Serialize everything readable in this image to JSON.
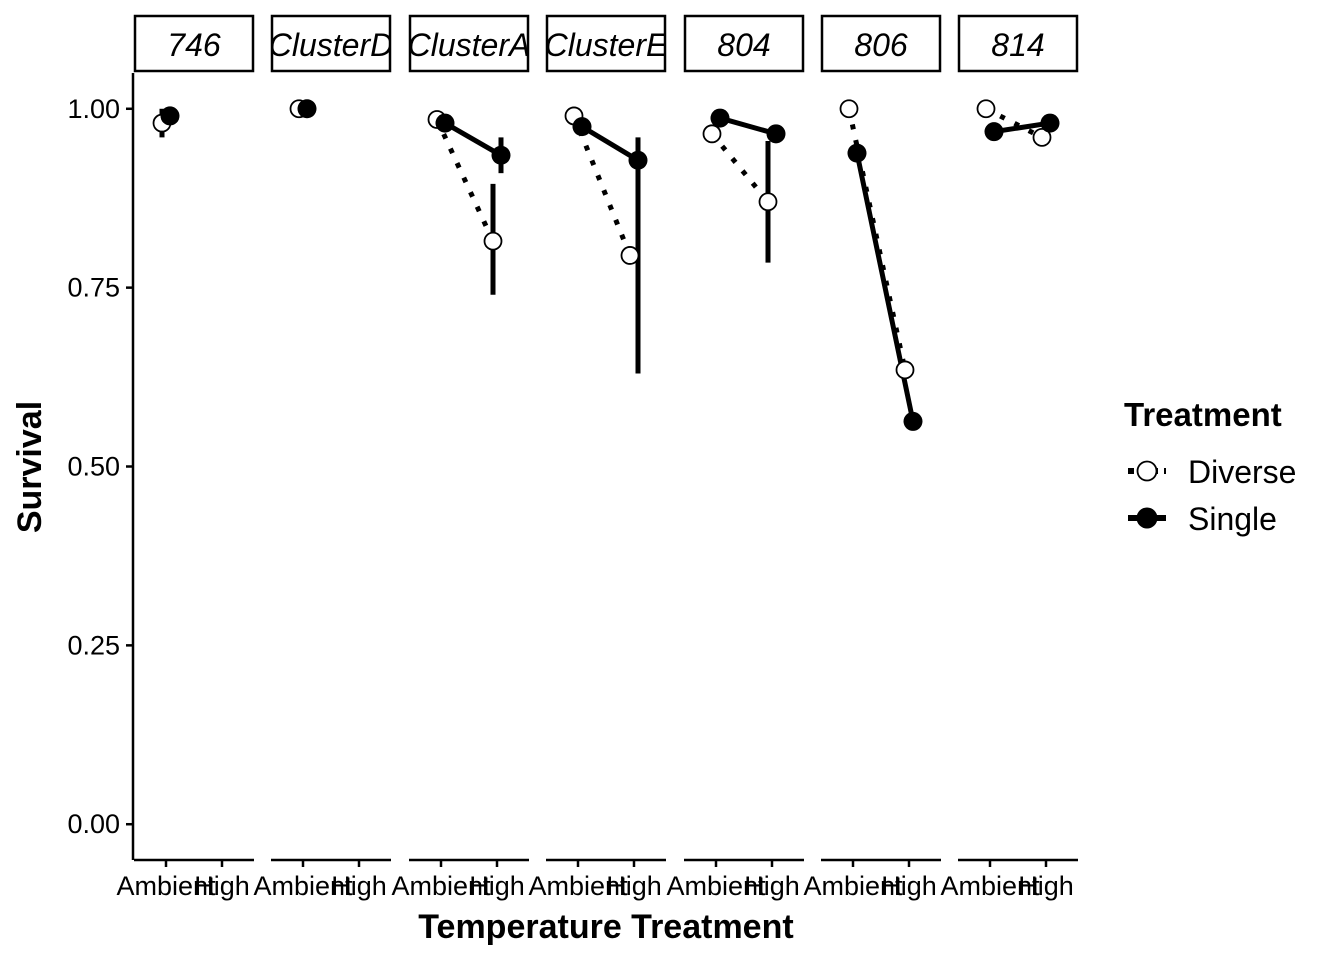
{
  "chart_data": {
    "type": "line",
    "xlabel": "Temperature Treatment",
    "ylabel": "Survival",
    "ylim": [
      -0.05,
      1.05
    ],
    "y_ticks": [
      "0.00",
      "0.25",
      "0.50",
      "0.75",
      "1.00"
    ],
    "categories": [
      "Ambient",
      "High"
    ],
    "legend": {
      "title": "Treatment",
      "position": "right",
      "entries": [
        {
          "name": "Diverse",
          "marker": "open-circle",
          "line": "dotted"
        },
        {
          "name": "Single",
          "marker": "filled-circle",
          "line": "solid"
        }
      ]
    },
    "panels": [
      {
        "label": "746",
        "series": [
          {
            "name": "Diverse",
            "points": [
              {
                "x": "Ambient",
                "y": 0.98,
                "lo": 0.96,
                "hi": 1.0
              }
            ]
          },
          {
            "name": "Single",
            "points": [
              {
                "x": "Ambient",
                "y": 0.99
              }
            ]
          }
        ]
      },
      {
        "label": "ClusterD",
        "series": [
          {
            "name": "Diverse",
            "points": [
              {
                "x": "Ambient",
                "y": 1.0
              }
            ]
          },
          {
            "name": "Single",
            "points": [
              {
                "x": "Ambient",
                "y": 1.0
              }
            ]
          }
        ]
      },
      {
        "label": "ClusterA",
        "series": [
          {
            "name": "Diverse",
            "points": [
              {
                "x": "Ambient",
                "y": 0.985
              },
              {
                "x": "High",
                "y": 0.815,
                "lo": 0.74,
                "hi": 0.895
              }
            ]
          },
          {
            "name": "Single",
            "points": [
              {
                "x": "Ambient",
                "y": 0.98
              },
              {
                "x": "High",
                "y": 0.935,
                "lo": 0.91,
                "hi": 0.96
              }
            ]
          }
        ]
      },
      {
        "label": "ClusterE",
        "series": [
          {
            "name": "Diverse",
            "points": [
              {
                "x": "Ambient",
                "y": 0.99
              },
              {
                "x": "High",
                "y": 0.795
              }
            ]
          },
          {
            "name": "Single",
            "points": [
              {
                "x": "Ambient",
                "y": 0.975
              },
              {
                "x": "High",
                "y": 0.928,
                "lo": 0.63,
                "hi": 0.96
              }
            ]
          }
        ]
      },
      {
        "label": "804",
        "series": [
          {
            "name": "Diverse",
            "points": [
              {
                "x": "Ambient",
                "y": 0.965
              },
              {
                "x": "High",
                "y": 0.87,
                "lo": 0.785,
                "hi": 0.955
              }
            ]
          },
          {
            "name": "Single",
            "points": [
              {
                "x": "Ambient",
                "y": 0.987
              },
              {
                "x": "High",
                "y": 0.965
              }
            ]
          }
        ]
      },
      {
        "label": "806",
        "series": [
          {
            "name": "Diverse",
            "points": [
              {
                "x": "Ambient",
                "y": 1.0
              },
              {
                "x": "High",
                "y": 0.635
              }
            ]
          },
          {
            "name": "Single",
            "points": [
              {
                "x": "Ambient",
                "y": 0.938
              },
              {
                "x": "High",
                "y": 0.563
              }
            ]
          }
        ]
      },
      {
        "label": "814",
        "series": [
          {
            "name": "Diverse",
            "points": [
              {
                "x": "Ambient",
                "y": 1.0
              },
              {
                "x": "High",
                "y": 0.96
              }
            ]
          },
          {
            "name": "Single",
            "points": [
              {
                "x": "Ambient",
                "y": 0.968
              },
              {
                "x": "High",
                "y": 0.98
              }
            ]
          }
        ]
      }
    ]
  }
}
